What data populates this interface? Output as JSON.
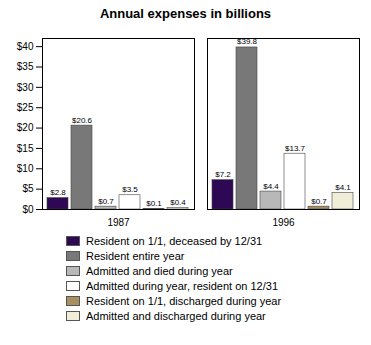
{
  "chart_data": {
    "type": "bar",
    "title": "Annual expenses in billions",
    "categories": [
      "1987",
      "1996"
    ],
    "series": [
      {
        "name": "Resident on 1/1, deceased by 12/31",
        "color": "#2E0854",
        "values": [
          2.8,
          7.2
        ],
        "value_labels": [
          "$2.8",
          "$7.2"
        ]
      },
      {
        "name": "Resident entire year",
        "color": "#787878",
        "values": [
          20.6,
          39.8
        ],
        "value_labels": [
          "$20.6",
          "$39.8"
        ]
      },
      {
        "name": "Admitted and died during year",
        "color": "#B8B8B8",
        "values": [
          0.7,
          4.4
        ],
        "value_labels": [
          "$0.7",
          "$4.4"
        ]
      },
      {
        "name": "Admitted during year, resident on 12/31",
        "color": "#FFFFFF",
        "values": [
          3.5,
          13.7
        ],
        "value_labels": [
          "$3.5",
          "$13.7"
        ]
      },
      {
        "name": "Resident on 1/1, discharged during year",
        "color": "#A89060",
        "values": [
          0.1,
          0.7
        ],
        "value_labels": [
          "$0.1",
          "$0.7"
        ]
      },
      {
        "name": "Admitted and discharged during year",
        "color": "#F0EDD8",
        "values": [
          0.4,
          4.1
        ],
        "value_labels": [
          "$0.4",
          "$4.1"
        ]
      }
    ],
    "ylim": [
      0,
      42
    ],
    "yticks": [
      {
        "value": 0,
        "label": "$0"
      },
      {
        "value": 5,
        "label": "$5"
      },
      {
        "value": 10,
        "label": "$10"
      },
      {
        "value": 15,
        "label": "$15"
      },
      {
        "value": 20,
        "label": "$20"
      },
      {
        "value": 25,
        "label": "$25"
      },
      {
        "value": 30,
        "label": "$30"
      },
      {
        "value": 35,
        "label": "$35"
      },
      {
        "value": 40,
        "label": "$40"
      }
    ],
    "data_labels": true,
    "grid": false,
    "legend": "bottom"
  }
}
